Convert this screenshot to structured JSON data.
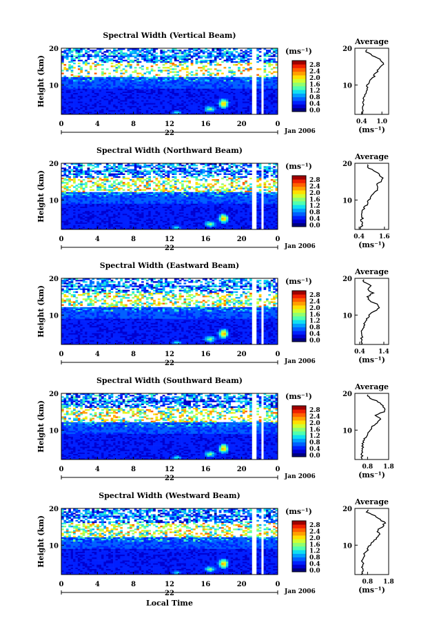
{
  "figure": {
    "xaxis_label": "Local Time",
    "date_label": "Jan 2006",
    "day_label": "22",
    "unit_label": "(ms⁻¹)",
    "average_title": "Average",
    "colorbar_ticks": [
      "2.8",
      "2.4",
      "2.0",
      "1.6",
      "1.2",
      "0.8",
      "0.4",
      "0.0"
    ],
    "colormap": [
      "#00007f",
      "#0000d0",
      "#0020ff",
      "#0060ff",
      "#00a0ff",
      "#10e0f0",
      "#50ffb0",
      "#90ff70",
      "#d0ff30",
      "#ffe000",
      "#ffa000",
      "#ff6000",
      "#f02000",
      "#a00000"
    ]
  },
  "chart_data": [
    {
      "type": "heatmap",
      "title": "Spectral Width (Vertical Beam)",
      "xlabel": "",
      "ylabel": "Height (km)",
      "xlim": [
        0,
        24
      ],
      "ylim": [
        2,
        20
      ],
      "xticks": [
        "0",
        "4",
        "8",
        "12",
        "16",
        "20",
        "0"
      ],
      "yticks": [
        "20",
        "10"
      ],
      "colorbar": {
        "label": "(ms⁻¹)",
        "range": [
          0.0,
          2.8
        ]
      },
      "average_profile": {
        "title": "Average",
        "xlabel": "(ms⁻¹)",
        "xlim": [
          0.2,
          1.2
        ],
        "xticks": [
          "0.4",
          "1.0"
        ],
        "height_km": [
          2,
          3,
          4,
          5,
          6,
          7,
          8,
          9,
          10,
          11,
          12,
          13,
          14,
          15,
          16,
          17,
          18,
          19
        ],
        "values": [
          0.42,
          0.44,
          0.43,
          0.45,
          0.44,
          0.47,
          0.52,
          0.58,
          0.56,
          0.62,
          0.74,
          0.8,
          0.88,
          0.95,
          1.05,
          0.92,
          0.7,
          0.55
        ]
      }
    },
    {
      "type": "heatmap",
      "title": "Spectral Width (Northward Beam)",
      "xlabel": "",
      "ylabel": "Height (km)",
      "xlim": [
        0,
        24
      ],
      "ylim": [
        2,
        20
      ],
      "xticks": [
        "0",
        "4",
        "8",
        "12",
        "16",
        "20",
        "0"
      ],
      "yticks": [
        "20",
        "10"
      ],
      "colorbar": {
        "label": "(ms⁻¹)",
        "range": [
          0.0,
          2.8
        ]
      },
      "average_profile": {
        "title": "Average",
        "xlabel": "(ms⁻¹)",
        "xlim": [
          0.2,
          1.8
        ],
        "xticks": [
          "0.4",
          "1.6"
        ],
        "height_km": [
          2,
          3,
          4,
          5,
          6,
          7,
          8,
          9,
          10,
          11,
          12,
          13,
          14,
          15,
          16,
          17,
          18,
          19
        ],
        "values": [
          0.48,
          0.52,
          0.5,
          0.55,
          0.52,
          0.58,
          0.66,
          0.8,
          0.85,
          1.0,
          1.15,
          1.3,
          1.2,
          1.45,
          1.55,
          1.35,
          1.1,
          0.8
        ]
      }
    },
    {
      "type": "heatmap",
      "title": "Spectral Width (Eastward Beam)",
      "xlabel": "",
      "ylabel": "Height (km)",
      "xlim": [
        0,
        24
      ],
      "ylim": [
        2,
        20
      ],
      "xticks": [
        "0",
        "4",
        "8",
        "12",
        "16",
        "20",
        "0"
      ],
      "yticks": [
        "20",
        "10"
      ],
      "colorbar": {
        "label": "(ms⁻¹)",
        "range": [
          0.0,
          2.8
        ]
      },
      "average_profile": {
        "title": "Average",
        "xlabel": "(ms⁻¹)",
        "xlim": [
          0.2,
          1.6
        ],
        "xticks": [
          "0.4",
          "1.4"
        ],
        "height_km": [
          2,
          3,
          4,
          5,
          6,
          7,
          8,
          9,
          10,
          11,
          12,
          13,
          14,
          15,
          16,
          17,
          18,
          19
        ],
        "values": [
          0.46,
          0.5,
          0.48,
          0.52,
          0.5,
          0.58,
          0.62,
          0.7,
          0.8,
          1.0,
          1.2,
          1.1,
          0.8,
          0.75,
          0.95,
          0.7,
          0.85,
          0.55
        ]
      }
    },
    {
      "type": "heatmap",
      "title": "Spectral Width (Southward Beam)",
      "xlabel": "",
      "ylabel": "Height (km)",
      "xlim": [
        0,
        24
      ],
      "ylim": [
        2,
        20
      ],
      "xticks": [
        "0",
        "4",
        "8",
        "12",
        "16",
        "20",
        "0"
      ],
      "yticks": [
        "20",
        "10"
      ],
      "colorbar": {
        "label": "(ms⁻¹)",
        "range": [
          0.0,
          2.8
        ]
      },
      "average_profile": {
        "title": "Average",
        "xlabel": "(ms⁻¹)",
        "xlim": [
          0.2,
          1.8
        ],
        "xticks": [
          "0.8",
          "1.8"
        ],
        "height_km": [
          2,
          3,
          4,
          5,
          6,
          7,
          8,
          9,
          10,
          11,
          12,
          13,
          14,
          15,
          16,
          17,
          18,
          19
        ],
        "values": [
          0.5,
          0.55,
          0.52,
          0.56,
          0.55,
          0.62,
          0.68,
          0.8,
          0.9,
          1.05,
          1.25,
          1.4,
          1.2,
          1.55,
          1.65,
          1.45,
          1.2,
          0.85
        ]
      }
    },
    {
      "type": "heatmap",
      "title": "Spectral Width (Westward Beam)",
      "xlabel": "Local Time",
      "ylabel": "Height (km)",
      "xlim": [
        0,
        24
      ],
      "ylim": [
        2,
        20
      ],
      "xticks": [
        "0",
        "4",
        "8",
        "12",
        "16",
        "20",
        "0"
      ],
      "yticks": [
        "20",
        "10"
      ],
      "colorbar": {
        "label": "(ms⁻¹)",
        "range": [
          0.0,
          2.8
        ]
      },
      "average_profile": {
        "title": "Average",
        "xlabel": "(ms⁻¹)",
        "xlim": [
          0.2,
          1.8
        ],
        "xticks": [
          "0.8",
          "1.8"
        ],
        "height_km": [
          2,
          3,
          4,
          5,
          6,
          7,
          8,
          9,
          10,
          11,
          12,
          13,
          14,
          15,
          16,
          17,
          18,
          19
        ],
        "values": [
          0.5,
          0.54,
          0.52,
          0.57,
          0.55,
          0.63,
          0.7,
          0.82,
          0.92,
          1.08,
          1.25,
          1.4,
          1.25,
          1.5,
          1.62,
          1.42,
          1.15,
          0.8
        ]
      }
    }
  ]
}
